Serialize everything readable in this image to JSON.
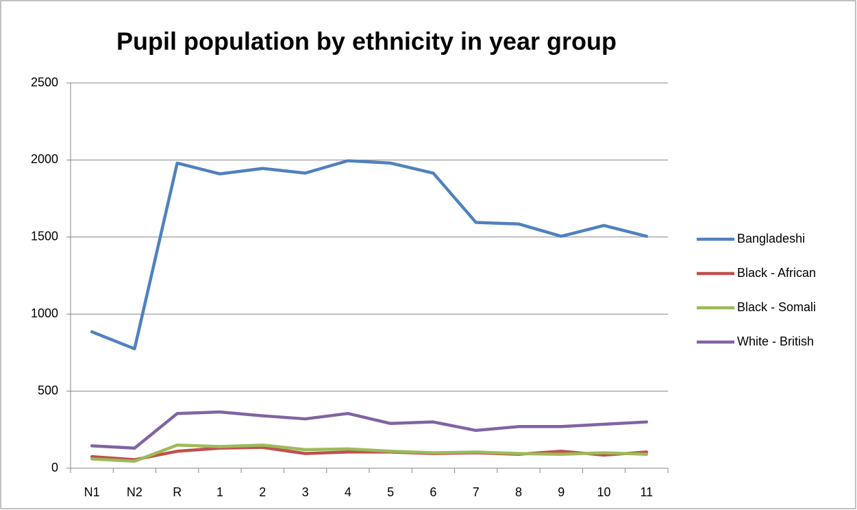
{
  "chart_data": {
    "type": "line",
    "title": "Pupil population by ethnicity in year group",
    "categories": [
      "N1",
      "N2",
      "R",
      "1",
      "2",
      "3",
      "4",
      "5",
      "6",
      "7",
      "8",
      "9",
      "10",
      "11"
    ],
    "series": [
      {
        "name": "Bangladeshi",
        "color": "#4f81bd",
        "values": [
          885,
          775,
          1980,
          1910,
          1945,
          1915,
          1995,
          1980,
          1915,
          1595,
          1585,
          1505,
          1575,
          1505
        ]
      },
      {
        "name": "Black - African",
        "color": "#c0504d",
        "values": [
          75,
          55,
          110,
          130,
          135,
          95,
          105,
          105,
          95,
          100,
          90,
          110,
          85,
          105
        ]
      },
      {
        "name": "Black - Somali",
        "color": "#9bbb59",
        "values": [
          60,
          45,
          150,
          140,
          150,
          120,
          125,
          110,
          100,
          105,
          95,
          90,
          100,
          90
        ]
      },
      {
        "name": "White - British",
        "color": "#8064a2",
        "values": [
          145,
          130,
          355,
          365,
          340,
          320,
          355,
          290,
          300,
          245,
          270,
          270,
          285,
          300
        ]
      }
    ],
    "ylim": [
      0,
      2500
    ],
    "yticks": [
      0,
      500,
      1000,
      1500,
      2000,
      2500
    ],
    "grid": true,
    "legend": "right"
  }
}
